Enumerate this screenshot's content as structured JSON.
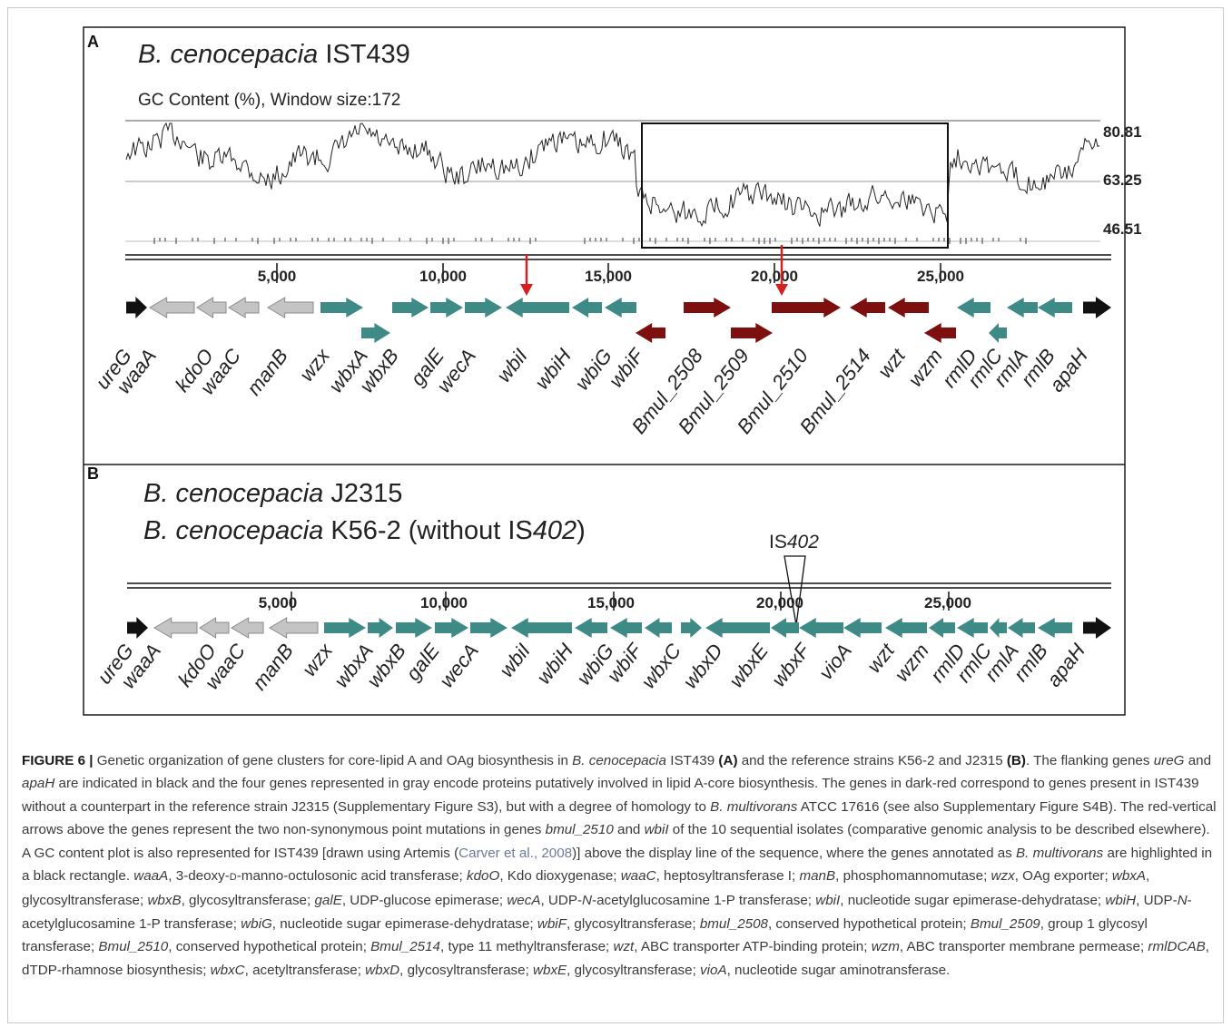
{
  "panel_a": {
    "letter": "A",
    "strain_species": "B. cenocepacia",
    "strain_name": "IST439",
    "gc_title": "GC Content (%), Window size:172",
    "gc_labels": [
      "80.81",
      "63.25",
      "46.51"
    ],
    "scale_labels": [
      "5,000",
      "10,000",
      "15,000",
      "20,000",
      "25,000"
    ],
    "genes": [
      "ureG",
      "waaA",
      "kdoO",
      "waaC",
      "manB",
      "wzx",
      "wbxA",
      "wbxB",
      "galE",
      "wecA",
      "wbiI",
      "wbiH",
      "wbiG",
      "wbiF",
      "Bmul_2508",
      "Bmul_2509",
      "Bmul_2510",
      "Bmul_2514",
      "wzt",
      "wzm",
      "rmlD",
      "rmlC",
      "rmlA",
      "rmlB",
      "apaH"
    ]
  },
  "panel_b": {
    "letter": "B",
    "line1_species": "B. cenocepacia",
    "line1_strain": "J2315",
    "line2_species": "B. cenocepacia",
    "line2_strain_a": "K56-2 (without IS",
    "line2_strain_b": "402",
    "line2_strain_c": ")",
    "insertion_a": "IS",
    "insertion_b": "402",
    "scale_labels": [
      "5,000",
      "10,000",
      "15,000",
      "20,000",
      "25,000"
    ],
    "genes": [
      "ureG",
      "waaA",
      "kdoO",
      "waaC",
      "manB",
      "wzx",
      "wbxA",
      "wbxB",
      "galE",
      "wecA",
      "wbiI",
      "wbiH",
      "wbiG",
      "wbiF",
      "wbxC",
      "wbxD",
      "wbxE",
      "wbxF",
      "vioA",
      "wzt",
      "wzm",
      "rmlD",
      "rmlC",
      "rmlA",
      "rmlB",
      "apaH"
    ]
  },
  "colors": {
    "flanking": "#111111",
    "lipid_core": "#c4c4c4",
    "oag": "#3d8a87",
    "multivorans": "#7d0f0f",
    "mutation_arrow": "#d62020"
  },
  "caption": {
    "label": "FIGURE 6 |",
    "t1": " Genetic organization of gene clusters for core-lipid A and OAg biosynthesis in ",
    "t2": "B. cenocepacia",
    "t3": " IST439 ",
    "t4": "(A)",
    "t5": " and the reference strains K56-2 and J2315 ",
    "t6": "(B)",
    "t7": ". The flanking genes ",
    "t8": "ureG",
    "t9": " and ",
    "t10": "apaH",
    "t11": " are indicated in black and the four genes represented in gray encode proteins putatively involved in lipid A-core biosynthesis. The genes in dark-red correspond to genes present in IST439 without a counterpart in the reference strain J2315 (Supplementary Figure S3), but with a degree of homology to ",
    "t12": "B. multivorans",
    "t13": " ATCC 17616 (see also Supplementary Figure S4B). The red-vertical arrows above the genes represent the two non-synonymous point mutations in genes ",
    "t14": "bmul_2510",
    "t15": " and ",
    "t16": "wbiI",
    "t17": " of the 10 sequential isolates (comparative genomic analysis to be described elsewhere). A GC content plot is also represented for IST439 [drawn using Artemis (",
    "t18": "Carver et al., 2008",
    "t19": ")] above the display line of the sequence, where the genes annotated as ",
    "t20": "B. multivorans",
    "t21": " are highlighted in a black rectangle. ",
    "t22": "waaA",
    "t23": ", 3-deoxy-",
    "t24": "D",
    "t25": "-manno-octulosonic acid transferase; ",
    "t26": "kdoO",
    "t27": ", Kdo dioxygenase; ",
    "t28": "waaC",
    "t29": ", heptosyltransferase I; ",
    "t30": "manB",
    "t31": ", phosphomannomutase; ",
    "t32": "wzx",
    "t33": ", OAg exporter; ",
    "t34": "wbxA",
    "t35": ", glycosyltransferase; ",
    "t36": "wbxB",
    "t37": ", glycosyltransferase; ",
    "t38": "galE",
    "t39": ", UDP-glucose epimerase; ",
    "t40": "wecA",
    "t41": ", UDP-",
    "t42": "N",
    "t43": "-acetylglucosamine 1-P transferase; ",
    "t44": "wbiI",
    "t45": ", nucleotide sugar epimerase-dehydratase; ",
    "t46": "wbiH",
    "t47": ", UDP-",
    "t48": "N",
    "t49": "-acetylglucosamine 1-P transferase; ",
    "t50": "wbiG",
    "t51": ", nucleotide sugar epimerase-dehydratase; ",
    "t52": "wbiF",
    "t53": ", glycosyltransferase; ",
    "t54": "bmul_2508",
    "t55": ", conserved hypothetical protein; ",
    "t56": "Bmul_2509",
    "t57": ", group 1 glycosyl transferase; ",
    "t58": "Bmul_2510",
    "t59": ", conserved hypothetical protein; ",
    "t60": "Bmul_2514",
    "t61": ", type 11 methyltransferase; ",
    "t62": "wzt",
    "t63": ", ABC transporter ATP-binding protein; ",
    "t64": "wzm",
    "t65": ", ABC transporter membrane permease; ",
    "t66": "rmlDCAB",
    "t67": ", dTDP-rhamnose biosynthesis; ",
    "t68": "wbxC",
    "t69": ", acetyltransferase; ",
    "t70": "wbxD",
    "t71": ", glycosyltransferase; ",
    "t72": "wbxE",
    "t73": ", glycosyltransferase; ",
    "t74": "vioA",
    "t75": ", nucleotide sugar aminotransferase."
  }
}
